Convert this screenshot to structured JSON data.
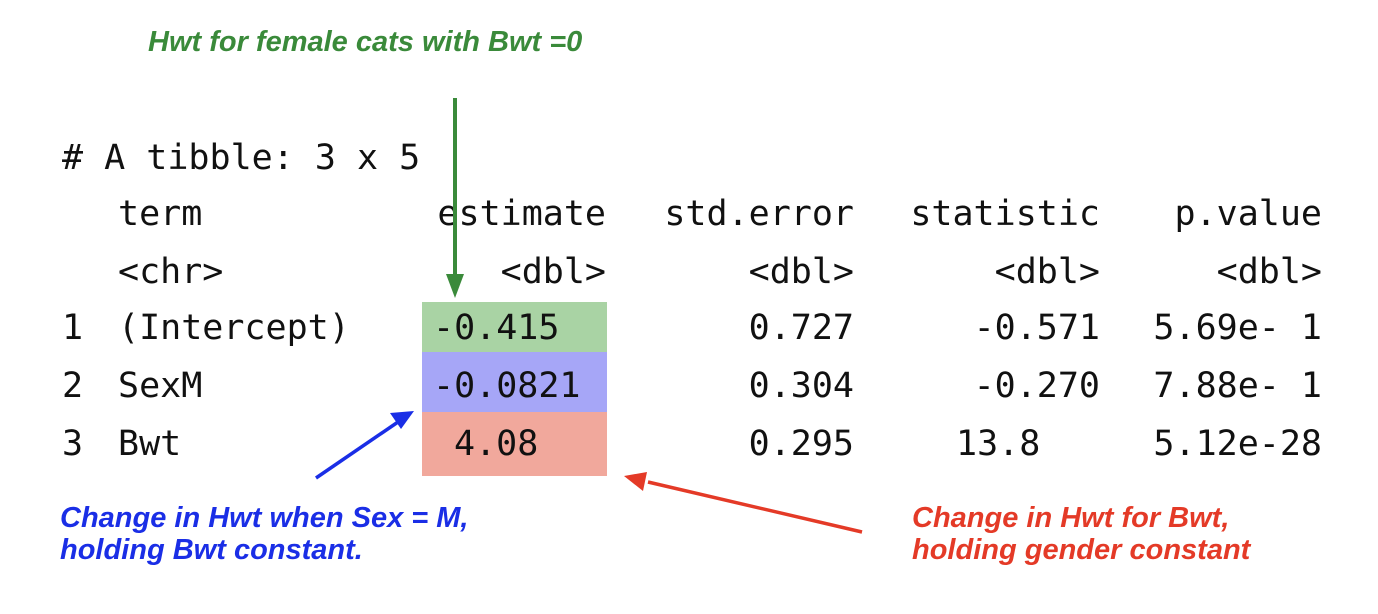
{
  "tibble": {
    "header": "# A tibble: 3 x 5",
    "columns": [
      "term",
      "estimate",
      "std.error",
      "statistic",
      "p.value"
    ],
    "types": [
      "<chr>",
      "<dbl>",
      "<dbl>",
      "<dbl>",
      "<dbl>"
    ],
    "rows": [
      {
        "index": "1",
        "term": "(Intercept)",
        "estimate": "-0.415",
        "std_error": "0.727",
        "statistic": "-0.571",
        "p_value": "5.69e- 1"
      },
      {
        "index": "2",
        "term": "SexM",
        "estimate": "-0.0821",
        "std_error": "0.304",
        "statistic": "-0.270",
        "p_value": "7.88e- 1"
      },
      {
        "index": "3",
        "term": "Bwt",
        "estimate": "4.08",
        "std_error": "0.295",
        "statistic": "13.8",
        "p_value": "5.12e-28"
      }
    ]
  },
  "annotations": {
    "intercept_note": "Hwt for female cats with Bwt =0",
    "sex_note_line1": "Change in Hwt when Sex = M,",
    "sex_note_line2": "holding Bwt constant.",
    "bwt_note_line1": "Change in Hwt for Bwt,",
    "bwt_note_line2": "holding gender constant"
  },
  "colors": {
    "intercept_highlight": "#a9d3a4",
    "sex_highlight": "#a6a6f7",
    "bwt_highlight": "#f1a89c",
    "green_annotation": "#3a8a3a",
    "blue_annotation": "#1a2ee6",
    "red_annotation": "#e43a27"
  }
}
